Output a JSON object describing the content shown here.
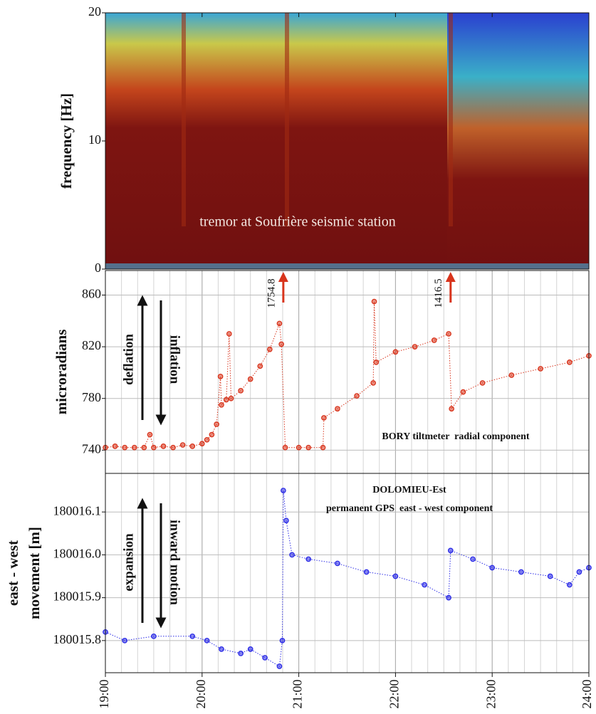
{
  "chart_data": [
    {
      "type": "spectrogram",
      "ylabel": "frequency [Hz]",
      "ylim": [
        0,
        20
      ],
      "yticks": [
        0,
        10,
        20
      ],
      "annotation": "tremor at Soufrière seismic station"
    },
    {
      "type": "scatter",
      "ylabel": "microradians",
      "color": "#d8341c",
      "grid": true,
      "ylim": [
        722,
        879
      ],
      "yticks": [
        740,
        780,
        820,
        860
      ],
      "x": [
        19.0,
        19.1,
        19.2,
        19.3,
        19.4,
        19.46,
        19.5,
        19.6,
        19.7,
        19.8,
        19.9,
        20.0,
        20.05,
        20.1,
        20.15,
        20.19,
        20.2,
        20.25,
        20.28,
        20.3,
        20.4,
        20.5,
        20.6,
        20.7,
        20.8,
        20.82,
        20.86,
        21.0,
        21.1,
        21.25,
        21.26,
        21.4,
        21.6,
        21.77,
        21.78,
        21.8,
        22.0,
        22.2,
        22.4,
        22.55,
        22.58,
        22.7,
        22.9,
        23.2,
        23.5,
        23.8,
        24.0
      ],
      "values": [
        742,
        743,
        742,
        742,
        742,
        752,
        742,
        743,
        742,
        744,
        743,
        745,
        748,
        752,
        760,
        797,
        775,
        779,
        830,
        780,
        786,
        795,
        805,
        818,
        838,
        822,
        742,
        742,
        742,
        742,
        765,
        772,
        782,
        792,
        855,
        808,
        816,
        820,
        825,
        830,
        772,
        785,
        792,
        798,
        803,
        808,
        813
      ],
      "annotations": [
        {
          "x": 20.84,
          "value": 1754.8
        },
        {
          "x": 22.57,
          "value": 1416.5
        }
      ],
      "arrow_labels": [
        "deflation",
        "inflation"
      ],
      "notes": [
        "BORY tiltmeter  radial component"
      ]
    },
    {
      "type": "scatter",
      "ylabel": [
        "east - west",
        "movement [m]"
      ],
      "color": "#2b2be6",
      "grid": true,
      "ylim": [
        180015.725,
        180016.19
      ],
      "yticks": [
        {
          "value": 180015.8,
          "label": "180015.8"
        },
        {
          "value": 180015.9,
          "label": "180015.9"
        },
        {
          "value": 180016,
          "label": "180016.0"
        },
        {
          "value": 180016.1,
          "label": "180016.1"
        }
      ],
      "x": [
        19.0,
        19.2,
        19.5,
        19.9,
        20.05,
        20.2,
        20.4,
        20.5,
        20.65,
        20.8,
        20.83,
        20.84,
        20.87,
        20.93,
        21.1,
        21.4,
        21.7,
        22.0,
        22.3,
        22.55,
        22.57,
        22.8,
        23.0,
        23.3,
        23.6,
        23.8,
        23.9,
        24.0
      ],
      "values": [
        180015.82,
        180015.8,
        180015.81,
        180015.81,
        180015.8,
        180015.78,
        180015.77,
        180015.78,
        180015.76,
        180015.74,
        180015.8,
        180016.15,
        180016.08,
        180016.0,
        180015.99,
        180015.98,
        180015.96,
        180015.95,
        180015.93,
        180015.9,
        180016.01,
        180015.99,
        180015.97,
        180015.96,
        180015.95,
        180015.93,
        180015.96,
        180015.97
      ],
      "arrow_labels": [
        "expansion",
        "inward motion"
      ],
      "notes": [
        "DOLOMIEU-Est",
        "permanent GPS  east - west component"
      ],
      "xlim": [
        19,
        24
      ],
      "xticks": [
        {
          "value": 19,
          "label": "19:00"
        },
        {
          "value": 20,
          "label": "20:00"
        },
        {
          "value": 21,
          "label": "21:00"
        },
        {
          "value": 22,
          "label": "22:00"
        },
        {
          "value": 23,
          "label": "23:00"
        },
        {
          "value": 24,
          "label": "24:00"
        }
      ]
    }
  ]
}
